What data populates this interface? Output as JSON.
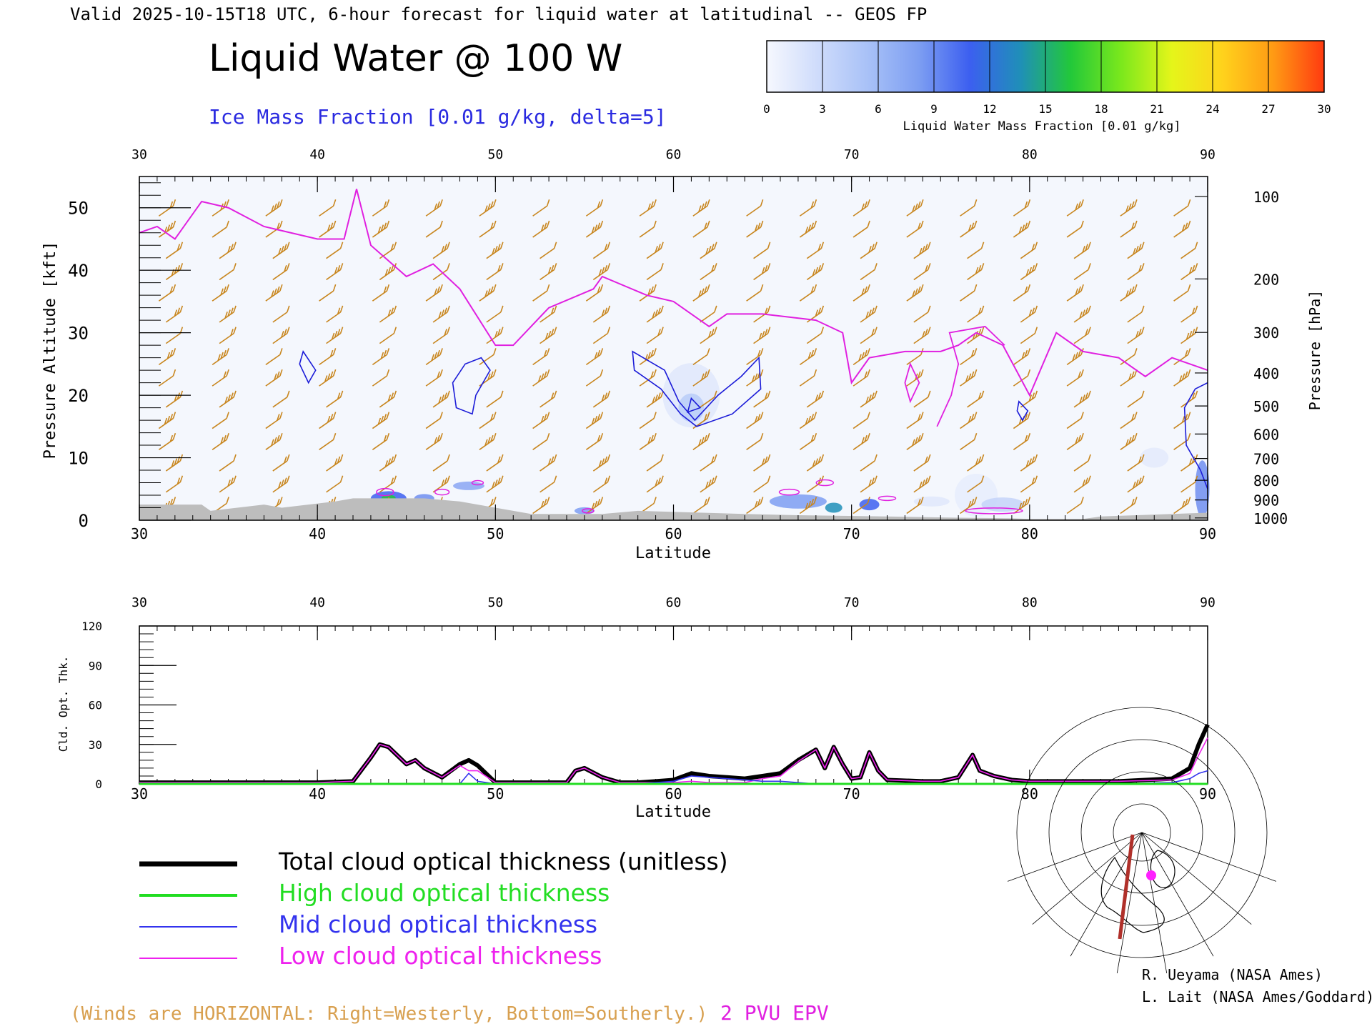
{
  "header": {
    "valid_line": "Valid 2025-10-15T18 UTC, 6-hour forecast for liquid water at latitudinal -- GEOS FP",
    "title": "Liquid Water @ 100 W",
    "ice_label": "Ice Mass Fraction [0.01 g/kg, delta=5]"
  },
  "colorbar": {
    "ticks": [
      "0",
      "3",
      "6",
      "9",
      "12",
      "15",
      "18",
      "21",
      "24",
      "27",
      "30"
    ],
    "colors": [
      "#f6f8fe",
      "#cfdcfb",
      "#a8c1f7",
      "#7d9ef2",
      "#3c5ff0",
      "#1f8fb8",
      "#22c83a",
      "#7be81c",
      "#e5f51a",
      "#ffd21c",
      "#ff9a14",
      "#ff3a10"
    ],
    "label": "Liquid Water Mass Fraction [0.01 g/kg]"
  },
  "top_panel": {
    "ylabel_left": "Pressure Altitude [kft]",
    "ylabel_right": "Pressure [hPa]",
    "xlabel": "Latitude",
    "x_ticks": [
      "30",
      "40",
      "50",
      "60",
      "70",
      "80",
      "90"
    ],
    "y_ticks": [
      "0",
      "10",
      "20",
      "30",
      "40",
      "50"
    ],
    "pressure_ticks": [
      "100",
      "200",
      "300",
      "400",
      "500",
      "600",
      "700",
      "800",
      "900",
      "1000"
    ],
    "colors": {
      "wind": "#c8861e",
      "epv": "#e020e0",
      "ice": "#1c1cd8",
      "terrain": "#bdbdbd"
    }
  },
  "bottom_panel": {
    "ylabel": "Cld. Opt. Thk.",
    "xlabel": "Latitude",
    "x_ticks": [
      "30",
      "40",
      "50",
      "60",
      "70",
      "80",
      "90"
    ],
    "y_ticks": [
      "0",
      "30",
      "60",
      "90",
      "120"
    ]
  },
  "legend": [
    {
      "label": "Total cloud optical thickness (unitless)",
      "color": "#000000"
    },
    {
      "label": "High cloud optical thickness",
      "color": "#22dd22"
    },
    {
      "label": "Mid cloud optical thickness",
      "color": "#3333ee"
    },
    {
      "label": "Low cloud optical thickness",
      "color": "#ee22ee"
    }
  ],
  "footer": {
    "winds_note": "(Winds are HORIZONTAL: Right=Westerly, Bottom=Southerly.)",
    "epv_note": "2 PVU EPV",
    "credit1": "R. Ueyama (NASA Ames)",
    "credit2": "L. Lait (NASA Ames/Goddard)"
  },
  "chart_data": [
    {
      "type": "contour",
      "title": "Liquid Water @ 100 W",
      "xlabel": "Latitude",
      "ylabel": "Pressure Altitude [kft]",
      "xlim": [
        30,
        90
      ],
      "ylim": [
        0,
        55
      ],
      "epv_2pvu_kft": {
        "lat": [
          30,
          31,
          32,
          33.5,
          35,
          37,
          40,
          41.5,
          42.2,
          43,
          45,
          46.5,
          48,
          50,
          51,
          53,
          55.5,
          56,
          58.5,
          60,
          62,
          63,
          65,
          68,
          69.5,
          70,
          71,
          73,
          75,
          76,
          77,
          78.5,
          80,
          81.5,
          83,
          85,
          86.5,
          88,
          90
        ],
        "alt": [
          46,
          47,
          45,
          51,
          50,
          47,
          45,
          45,
          53,
          44,
          39,
          41,
          37,
          28,
          28,
          34,
          37,
          39,
          36,
          35,
          31,
          33,
          33,
          32,
          30,
          22,
          26,
          27,
          27,
          28,
          30,
          28,
          20,
          30,
          27,
          26,
          23,
          26,
          24
        ]
      },
      "terrain_kft": {
        "lat": [
          30,
          33.5,
          34,
          37,
          38,
          41,
          42,
          46,
          48,
          50,
          52,
          56,
          58,
          64,
          67,
          72,
          76,
          79,
          80,
          83,
          84,
          86,
          88,
          90
        ],
        "alt": [
          2.5,
          2.5,
          1.5,
          2.5,
          2.0,
          3.0,
          3.5,
          3.5,
          3.0,
          2.0,
          1.0,
          1.0,
          1.5,
          1.0,
          0.8,
          0.6,
          0.4,
          0.3,
          0.2,
          0.2,
          0.6,
          0.8,
          1.0,
          1.2
        ]
      }
    },
    {
      "type": "line",
      "xlabel": "Latitude",
      "ylabel": "Cld. Opt. Thk.",
      "xlim": [
        30,
        90
      ],
      "ylim": [
        0,
        120
      ],
      "x": [
        30,
        35,
        40,
        42,
        43,
        43.5,
        44,
        45,
        45.5,
        46,
        47,
        48,
        48.5,
        49,
        50,
        51,
        54,
        54.5,
        55,
        56,
        57,
        58,
        59,
        60,
        61,
        62,
        63,
        64,
        65,
        66,
        67,
        68,
        68.5,
        69,
        69.5,
        70,
        70.5,
        71,
        71.5,
        72,
        74,
        75,
        76,
        76.8,
        77.2,
        78,
        79,
        80,
        85,
        88,
        89,
        89.5,
        90
      ],
      "series": [
        {
          "name": "Total cloud optical thickness (unitless)",
          "values": [
            1,
            1,
            1,
            2,
            20,
            30,
            28,
            15,
            18,
            12,
            5,
            15,
            18,
            14,
            1,
            1,
            1,
            10,
            12,
            5,
            1,
            1,
            2,
            3,
            8,
            6,
            5,
            4,
            6,
            8,
            18,
            26,
            12,
            28,
            15,
            4,
            5,
            24,
            10,
            3,
            2,
            2,
            5,
            22,
            10,
            6,
            3,
            2,
            2,
            4,
            12,
            30,
            45
          ]
        },
        {
          "name": "High cloud optical thickness",
          "values": [
            0,
            0,
            0,
            0,
            0,
            0,
            0,
            0,
            0,
            0,
            0,
            0,
            0,
            0,
            0,
            0,
            0,
            0,
            0,
            0,
            0,
            0,
            0,
            0,
            0,
            0,
            0,
            0,
            0,
            0,
            0,
            0,
            0,
            0,
            0,
            0,
            0,
            0,
            0,
            0,
            0,
            0,
            0,
            0,
            0,
            0,
            0,
            0,
            0,
            0,
            0,
            0,
            0
          ]
        },
        {
          "name": "Mid cloud optical thickness",
          "values": [
            0,
            0,
            0,
            0,
            0,
            0,
            0,
            0,
            0,
            0,
            0,
            0,
            8,
            2,
            0,
            0,
            0,
            0,
            0,
            0,
            0,
            0,
            1,
            2,
            6,
            5,
            4,
            3,
            2,
            2,
            1,
            0,
            0,
            0,
            0,
            0,
            0,
            0,
            0,
            0,
            0,
            0,
            0,
            0,
            0,
            0,
            0,
            0,
            0,
            1,
            4,
            8,
            10
          ]
        },
        {
          "name": "Low cloud optical thickness",
          "values": [
            1,
            1,
            1,
            2,
            20,
            30,
            28,
            15,
            18,
            12,
            5,
            14,
            10,
            10,
            1,
            1,
            1,
            10,
            12,
            5,
            1,
            1,
            1,
            1,
            2,
            1,
            1,
            1,
            4,
            6,
            17,
            26,
            12,
            28,
            15,
            4,
            5,
            24,
            10,
            3,
            2,
            2,
            5,
            22,
            10,
            6,
            3,
            2,
            2,
            3,
            8,
            22,
            35
          ]
        }
      ]
    }
  ]
}
